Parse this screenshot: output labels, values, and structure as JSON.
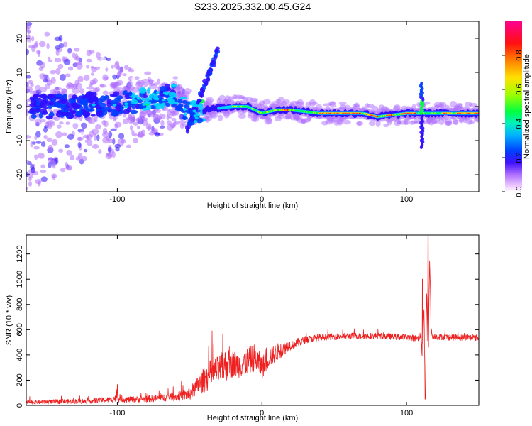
{
  "title": "S233.2025.332.00.45.G24",
  "chart_data": [
    {
      "type": "heatmap",
      "name": "spectrogram",
      "xlabel": "Height of straight line (km)",
      "ylabel": "Frequency (Hz)",
      "xlim": [
        -163,
        150
      ],
      "ylim": [
        -25,
        25
      ],
      "x_ticks": [
        -100,
        0,
        100
      ],
      "y_ticks": [
        -20,
        -10,
        0,
        10,
        20
      ],
      "x_tick_labels": [
        "-100",
        "0",
        "100"
      ],
      "y_tick_labels": [
        "-20",
        "-10",
        "0",
        "10",
        "20"
      ],
      "colorbar": {
        "label": "Normalized spectral amplitude",
        "range": [
          0,
          1
        ],
        "ticks": [
          0.0,
          0.2,
          0.4,
          0.6,
          0.8
        ],
        "tick_labels": [
          "0.0",
          "0.2",
          "0.4",
          "0.6",
          "0.8"
        ],
        "colors": [
          "#ffffff",
          "#b070ff",
          "#3010ff",
          "#0040ff",
          "#00d0ff",
          "#00ff40",
          "#c0ff00",
          "#ffd000",
          "#ff5000",
          "#ff0040",
          "#ff0090"
        ]
      },
      "ridge": {
        "x": [
          -140,
          -120,
          -100,
          -80,
          -60,
          -50,
          -40,
          -30,
          -20,
          -10,
          0,
          10,
          20,
          30,
          40,
          50,
          60,
          70,
          80,
          90,
          100,
          110,
          120,
          130,
          140,
          150
        ],
        "y": [
          0,
          0.5,
          1,
          2,
          3,
          -2,
          -1,
          -0.5,
          0,
          0,
          -2,
          -1,
          -1,
          -1.5,
          -2,
          -2,
          -2,
          -2,
          -3,
          -2.5,
          -2,
          -2,
          -2,
          -2,
          -2,
          -2
        ]
      },
      "features": [
        {
          "label": "drift-streak",
          "x": [
            -52,
            -30
          ],
          "y": [
            -7,
            17
          ]
        },
        {
          "label": "spike",
          "x": [
            108,
            113
          ],
          "y": [
            -12,
            7
          ]
        }
      ]
    },
    {
      "type": "line",
      "name": "snr",
      "xlabel": "Height of straight line (km)",
      "ylabel": "SNR (10 * v/v)",
      "xlim": [
        -163,
        150
      ],
      "ylim": [
        0,
        1350
      ],
      "x_ticks": [
        -100,
        0,
        100
      ],
      "y_ticks": [
        0,
        200,
        400,
        600,
        800,
        1000,
        1200
      ],
      "x_tick_labels": [
        "-100",
        "0",
        "100"
      ],
      "y_tick_labels": [
        "0",
        "200",
        "400",
        "600",
        "800",
        "1000",
        "1200"
      ],
      "color": "#ee2020",
      "envelope": {
        "x": [
          -163,
          -140,
          -120,
          -105,
          -100,
          -98,
          -80,
          -60,
          -50,
          -45,
          -40,
          -35,
          -30,
          -25,
          -20,
          -15,
          -10,
          -5,
          0,
          5,
          10,
          15,
          20,
          30,
          40,
          60,
          80,
          100,
          108,
          110,
          111,
          112,
          113,
          114,
          115,
          116,
          117,
          118,
          119,
          120,
          130,
          150
        ],
        "y": [
          25,
          30,
          35,
          45,
          60,
          45,
          50,
          70,
          90,
          150,
          200,
          250,
          280,
          320,
          330,
          320,
          350,
          380,
          300,
          380,
          420,
          450,
          480,
          520,
          540,
          550,
          550,
          540,
          530,
          560,
          350,
          800,
          60,
          950,
          300,
          1200,
          600,
          540,
          550,
          545,
          540,
          535
        ],
        "noise": [
          15,
          18,
          20,
          22,
          35,
          22,
          25,
          35,
          50,
          70,
          100,
          120,
          110,
          130,
          110,
          100,
          110,
          110,
          90,
          80,
          70,
          55,
          40,
          30,
          25,
          25,
          25,
          25,
          25,
          30,
          30,
          30,
          10,
          40,
          30,
          40,
          30,
          25,
          25,
          25,
          25,
          25
        ]
      },
      "peaks": [
        {
          "x": -100,
          "y": 165
        },
        {
          "x": 111,
          "y": 1000
        },
        {
          "x": 113,
          "y": 50
        },
        {
          "x": 115,
          "y": 1350
        }
      ]
    }
  ]
}
